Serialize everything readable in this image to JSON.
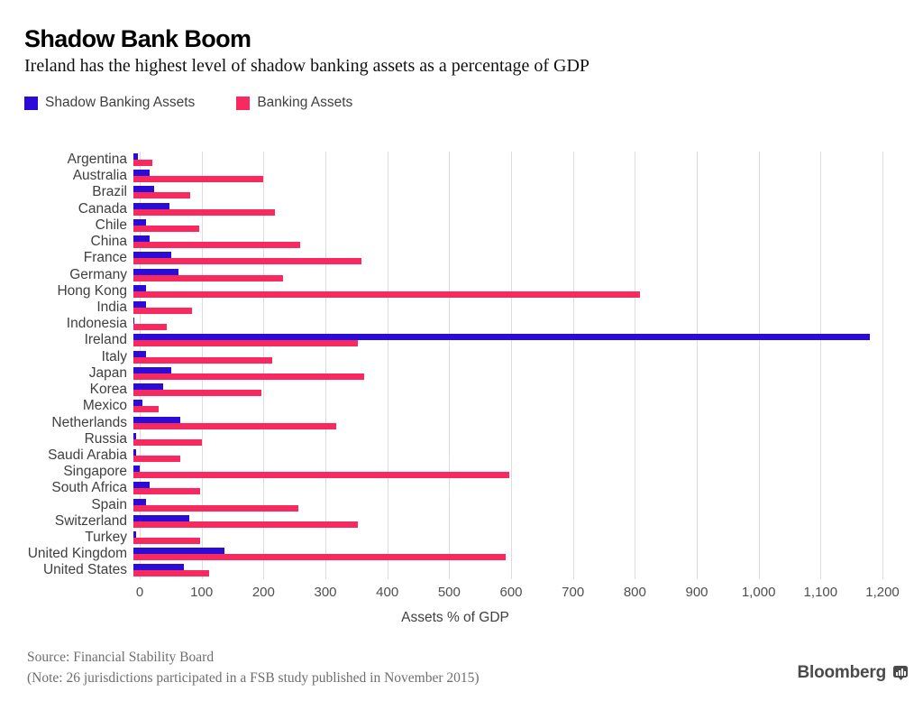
{
  "header": {
    "title": "Shadow Bank Boom",
    "subtitle": "Ireland has the highest level of shadow banking assets as a percentage of GDP"
  },
  "legend": [
    {
      "label": "Shadow Banking Assets",
      "color": "#2a0bd8"
    },
    {
      "label": "Banking Assets",
      "color": "#f9295f"
    }
  ],
  "chart_data": {
    "type": "bar",
    "orientation": "horizontal",
    "title": "Shadow Bank Boom",
    "xlabel": "Assets % of GDP",
    "xlim": [
      0,
      1200
    ],
    "grid": "vertical",
    "grid_color": "#dcdcdc",
    "legend_position": "top-left",
    "xticks": [
      0,
      100,
      200,
      300,
      400,
      500,
      600,
      700,
      800,
      900,
      1000,
      1100,
      1200
    ],
    "xtick_labels": [
      "0",
      "100",
      "200",
      "300",
      "400",
      "500",
      "600",
      "700",
      "800",
      "900",
      "1,000",
      "1,100",
      "1,200"
    ],
    "categories": [
      "Argentina",
      "Australia",
      "Brazil",
      "Canada",
      "Chile",
      "China",
      "France",
      "Germany",
      "Hong Kong",
      "India",
      "Indonesia",
      "Ireland",
      "Italy",
      "Japan",
      "Korea",
      "Mexico",
      "Netherlands",
      "Russia",
      "Saudi Arabia",
      "Singapore",
      "South Africa",
      "Spain",
      "Switzerland",
      "Turkey",
      "United Kingdom",
      "United States"
    ],
    "series": [
      {
        "name": "Shadow Banking Assets",
        "color": "#2a0bd8",
        "values": [
          7,
          26,
          33,
          58,
          21,
          26,
          61,
          73,
          20,
          20,
          2,
          1190,
          20,
          61,
          48,
          15,
          75,
          4,
          4,
          10,
          26,
          20,
          90,
          5,
          147,
          82
        ]
      },
      {
        "name": "Banking Assets",
        "color": "#f9295f",
        "values": [
          30,
          210,
          91,
          228,
          106,
          270,
          368,
          242,
          818,
          95,
          54,
          362,
          224,
          373,
          206,
          40,
          327,
          110,
          75,
          607,
          107,
          267,
          363,
          107,
          602,
          122
        ]
      }
    ]
  },
  "footer": {
    "source": "Source: Financial Stability Board",
    "note": "(Note: 26 jurisdictions participated in a FSB study published in November 2015)",
    "brand": "Bloomberg"
  }
}
